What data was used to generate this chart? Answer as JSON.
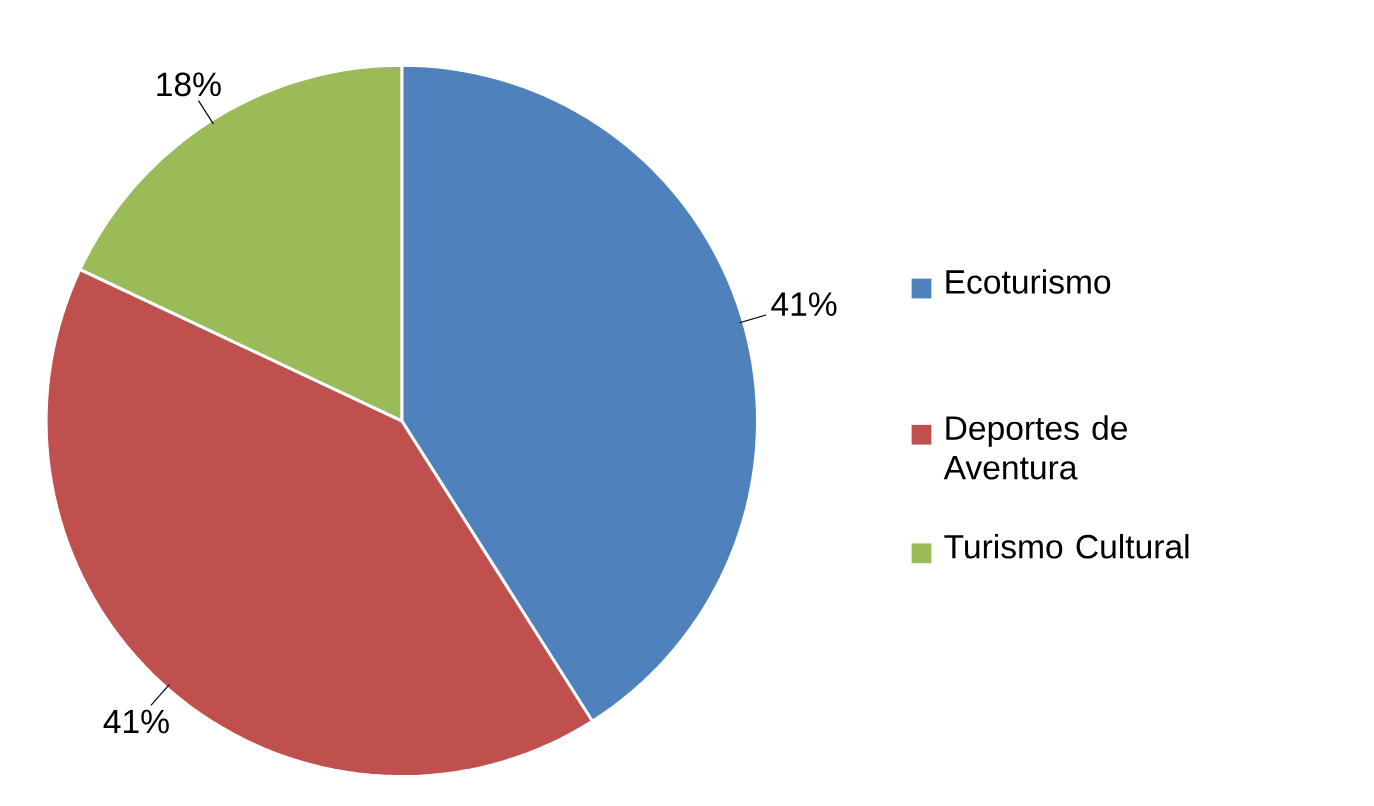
{
  "chart_data": {
    "type": "pie",
    "categories": [
      "Ecoturismo",
      "Deportes de Aventura",
      "Turismo Cultural"
    ],
    "values": [
      41,
      41,
      18
    ],
    "colors": [
      "#4f81bd",
      "#c0504d",
      "#9bbb59"
    ],
    "value_labels": [
      "41%",
      "41%",
      "18%"
    ],
    "legend": "right"
  }
}
